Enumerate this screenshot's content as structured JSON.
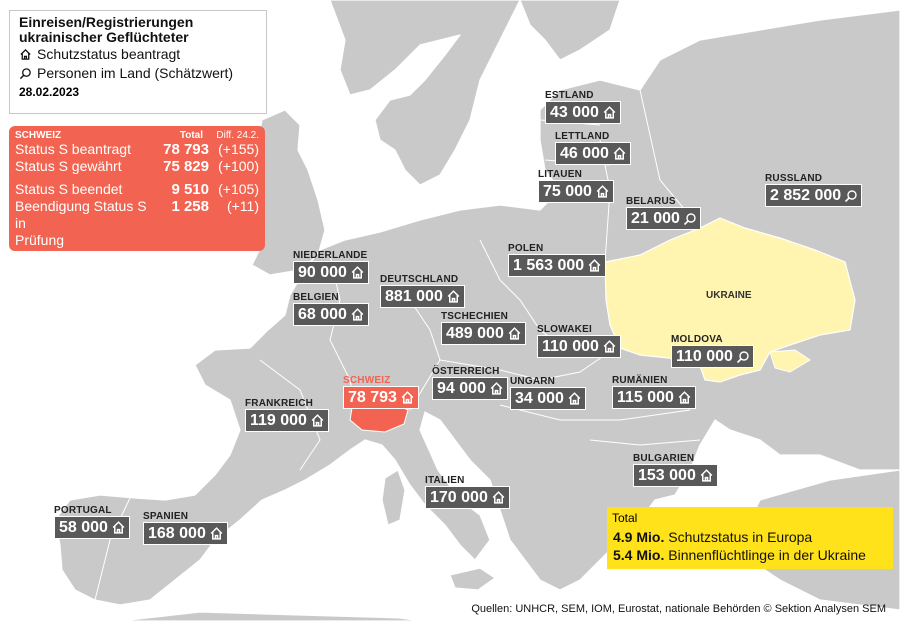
{
  "legend": {
    "title_line1": "Einreisen/Registrierungen",
    "title_line2": "ukrainischer Geflüchteter",
    "item_house": "Schutzstatus beantragt",
    "item_search": "Personen im Land (Schätzwert)",
    "date": "28.02.2023"
  },
  "switzerland_box": {
    "heading": "SCHWEIZ",
    "col_total": "Total",
    "col_diff": "Diff. 24.2.",
    "rows": [
      {
        "label": "Status S beantragt",
        "value": "78 793",
        "diff": "(+155)"
      },
      {
        "label": "Status S gewährt",
        "value": "75 829",
        "diff": "(+100)"
      },
      {
        "label": "Status S beendet",
        "value": "9 510",
        "diff": "(+105)"
      },
      {
        "label": "Beendigung Status S in",
        "value": "1 258",
        "diff": "(+11)"
      },
      {
        "label": "Prüfung",
        "value": "",
        "diff": ""
      }
    ]
  },
  "countries": {
    "estland": {
      "name": "ESTLAND",
      "value": "43 000",
      "icon": "house-icon"
    },
    "lettland": {
      "name": "LETTLAND",
      "value": "46 000",
      "icon": "house-icon"
    },
    "litauen": {
      "name": "LITAUEN",
      "value": "75 000",
      "icon": "house-icon"
    },
    "belarus": {
      "name": "BELARUS",
      "value": "21 000",
      "icon": "search-icon"
    },
    "russland": {
      "name": "RUSSLAND",
      "value": "2 852 000",
      "icon": "search-icon"
    },
    "polen": {
      "name": "POLEN",
      "value": "1 563 000",
      "icon": "house-icon"
    },
    "niederlande": {
      "name": "NIEDERLANDE",
      "value": "90 000",
      "icon": "house-icon"
    },
    "deutschland": {
      "name": "DEUTSCHLAND",
      "value": "881 000",
      "icon": "house-icon"
    },
    "belgien": {
      "name": "BELGIEN",
      "value": "68 000",
      "icon": "house-icon"
    },
    "tschechien": {
      "name": "TSCHECHIEN",
      "value": "489 000",
      "icon": "house-icon"
    },
    "slowakei": {
      "name": "SLOWAKEI",
      "value": "110 000",
      "icon": "house-icon"
    },
    "moldova": {
      "name": "MOLDOVA",
      "value": "110 000",
      "icon": "search-icon"
    },
    "schweiz": {
      "name": "SCHWEIZ",
      "value": "78 793",
      "icon": "house-icon"
    },
    "oesterreich": {
      "name": "ÖSTERREICH",
      "value": "94 000",
      "icon": "house-icon"
    },
    "ungarn": {
      "name": "UNGARN",
      "value": "34 000",
      "icon": "house-icon"
    },
    "rumaenien": {
      "name": "RUMÄNIEN",
      "value": "115 000",
      "icon": "house-icon"
    },
    "frankreich": {
      "name": "FRANKREICH",
      "value": "119 000",
      "icon": "house-icon"
    },
    "bulgarien": {
      "name": "BULGARIEN",
      "value": "153 000",
      "icon": "house-icon"
    },
    "italien": {
      "name": "ITALIEN",
      "value": "170 000",
      "icon": "house-icon"
    },
    "portugal": {
      "name": "PORTUGAL",
      "value": "58 000",
      "icon": "house-icon"
    },
    "spanien": {
      "name": "SPANIEN",
      "value": "168 000",
      "icon": "house-icon"
    }
  },
  "ukraine_label": "UKRAINE",
  "total_box": {
    "label": "Total",
    "line1_value": "4.9 Mio.",
    "line1_text": "Schutzstatus in Europa",
    "line2_value": "5.4 Mio.",
    "line2_text": "Binnenflüchtlinge in der Ukraine"
  },
  "sources": "Quellen: UNHCR, SEM, IOM, Eurostat, nationale Behörden   © Sektion Analysen SEM",
  "colors": {
    "land": "#c9c9c9",
    "ukraine": "#fff4b0",
    "switzerland": "#f26451",
    "label_box": "#595959",
    "total_box": "#ffe21a"
  }
}
